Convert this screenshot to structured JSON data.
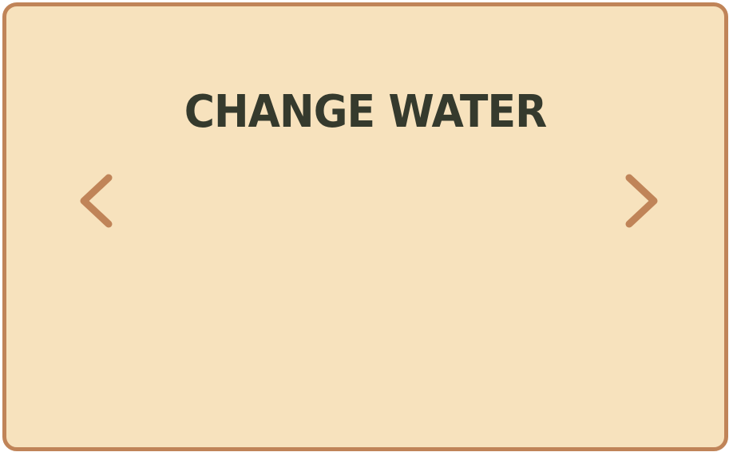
{
  "screen": {
    "title": "CHANGE WATER"
  },
  "navigation": {
    "prev_icon": "chevron-left-icon",
    "next_icon": "chevron-right-icon"
  },
  "colors": {
    "background": "#f7e2bd",
    "border": "#c08458",
    "title_text": "#353a2d",
    "chevron": "#c08458"
  }
}
